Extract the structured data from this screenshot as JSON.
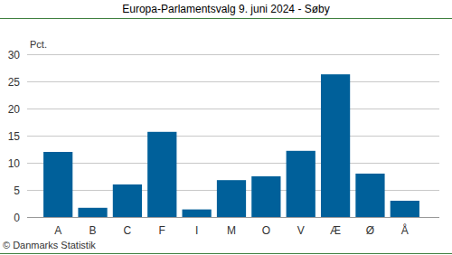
{
  "chart_data": {
    "type": "bar",
    "title": "Europa-Parlamentsvalg 9. juni 2024 - Søby",
    "ylabel": "Pct.",
    "source": "© Danmarks Statistik",
    "categories": [
      "A",
      "B",
      "C",
      "F",
      "I",
      "M",
      "O",
      "V",
      "Æ",
      "Ø",
      "Å"
    ],
    "values": [
      12.0,
      1.7,
      6.0,
      15.7,
      1.4,
      6.8,
      7.5,
      12.2,
      26.3,
      8.0,
      3.0
    ],
    "color": "#00609a",
    "ylim": [
      0,
      30
    ],
    "yticks": [
      0,
      5,
      10,
      15,
      20,
      25,
      30
    ],
    "grid": true
  }
}
